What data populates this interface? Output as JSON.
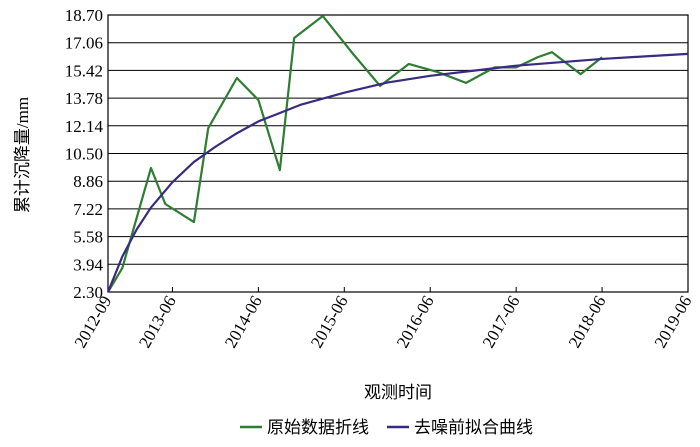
{
  "chart_data": {
    "type": "line",
    "x_label": "观测时间",
    "y_label": "累计沉降量/mm",
    "xlim": [
      "2012-09",
      "2019-06"
    ],
    "xticks": [
      "2012-09",
      "2013-06",
      "2014-06",
      "2015-06",
      "2016-06",
      "2017-06",
      "2018-06",
      "2019-06"
    ],
    "ylim": [
      2.3,
      18.7
    ],
    "yticks": [
      {
        "value": 2.3,
        "label": "2.30"
      },
      3.94,
      5.58,
      7.22,
      8.86,
      {
        "value": 10.5,
        "label": "10.50"
      },
      12.14,
      13.78,
      15.42,
      17.06,
      {
        "value": 18.7,
        "label": "18.70"
      }
    ],
    "grid": true,
    "legend": "bottom",
    "series": [
      {
        "name": "原始数据折线",
        "color": "#2e7d32",
        "x": [
          "2012-09",
          "2012-11",
          "2013-03",
          "2013-05",
          "2013-09",
          "2013-11",
          "2014-03",
          "2014-06",
          "2014-09",
          "2014-11",
          "2015-03",
          "2015-07",
          "2015-11",
          "2016-03",
          "2016-07",
          "2016-11",
          "2017-03",
          "2017-06",
          "2017-09",
          "2017-11",
          "2018-03",
          "2018-06"
        ],
        "values": [
          2.3,
          3.72,
          9.64,
          7.51,
          6.44,
          12.0,
          14.97,
          13.67,
          9.52,
          17.34,
          18.64,
          16.51,
          14.5,
          15.8,
          15.33,
          14.68,
          15.6,
          15.6,
          16.2,
          16.5,
          15.2,
          16.2
        ]
      },
      {
        "name": "去噪前拟合曲线",
        "color": "#3a2a80",
        "x": [
          "2012-09",
          "2012-11",
          "2013-01",
          "2013-03",
          "2013-06",
          "2013-09",
          "2013-12",
          "2014-03",
          "2014-06",
          "2014-09",
          "2014-12",
          "2015-06",
          "2015-12",
          "2016-06",
          "2016-12",
          "2017-06",
          "2017-12",
          "2018-06",
          "2018-12",
          "2019-06"
        ],
        "values": [
          2.3,
          4.4,
          6.0,
          7.3,
          8.8,
          10.0,
          10.9,
          11.7,
          12.4,
          12.9,
          13.4,
          14.1,
          14.7,
          15.1,
          15.4,
          15.7,
          15.9,
          16.1,
          16.25,
          16.4
        ]
      }
    ]
  }
}
